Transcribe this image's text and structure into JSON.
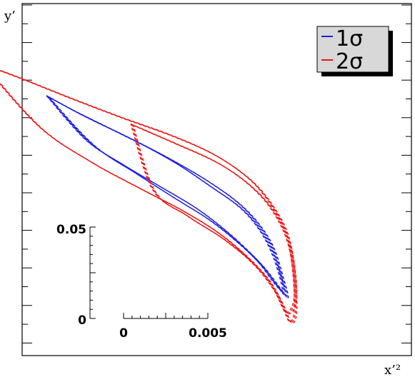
{
  "chart_data": {
    "type": "line",
    "xlabel": "x’²",
    "ylabel": "y’",
    "grid": false,
    "legend_position": "top-right",
    "colors": {
      "1σ": "#1f1fe0",
      "2σ": "#ee1111"
    },
    "scale_bar": {
      "x_ticks": [
        "0",
        "0.005"
      ],
      "y_ticks": [
        "0",
        "0.05"
      ],
      "x_range": [
        0,
        0.005
      ],
      "y_range": [
        0,
        0.05
      ]
    },
    "series": [
      {
        "name": "1σ",
        "style": "dashed",
        "contours": [
          [
            [
              -0.0045,
              0.1215
            ],
            [
              -0.0028,
              0.113
            ],
            [
              -0.0005,
              0.1025
            ],
            [
              0.002,
              0.091
            ],
            [
              0.0045,
              0.078
            ],
            [
              0.0065,
              0.0655
            ],
            [
              0.0078,
              0.054
            ],
            [
              0.0088,
              0.04
            ],
            [
              0.0094,
              0.023
            ],
            [
              0.0097,
              0.012
            ],
            [
              0.0093,
              0.016
            ],
            [
              0.0084,
              0.027
            ],
            [
              0.0072,
              0.0385
            ],
            [
              0.0058,
              0.05
            ],
            [
              0.0042,
              0.061
            ],
            [
              0.0022,
              0.072
            ],
            [
              0.0,
              0.084
            ],
            [
              -0.0022,
              0.0975
            ],
            [
              -0.0045,
              0.1215
            ]
          ],
          [
            [
              -0.0045,
              0.1215
            ],
            [
              -0.0024,
              0.111
            ],
            [
              0.0004,
              0.0985
            ],
            [
              0.003,
              0.0855
            ],
            [
              0.0052,
              0.072
            ],
            [
              0.007,
              0.06
            ],
            [
              0.0082,
              0.047
            ],
            [
              0.009,
              0.032
            ],
            [
              0.0095,
              0.015
            ],
            [
              0.009,
              0.019
            ],
            [
              0.008,
              0.031
            ],
            [
              0.0066,
              0.043
            ],
            [
              0.005,
              0.0545
            ],
            [
              0.003,
              0.066
            ],
            [
              0.0008,
              0.079
            ],
            [
              -0.0018,
              0.095
            ],
            [
              -0.0045,
              0.1215
            ]
          ]
        ]
      },
      {
        "name": "2σ",
        "style": "dashed",
        "contours": [
          [
            [
              -0.0083,
              0.139
            ],
            [
              -0.006,
              0.131
            ],
            [
              -0.003,
              0.12
            ],
            [
              0.0,
              0.1095
            ],
            [
              0.003,
              0.0995
            ],
            [
              0.0055,
              0.089
            ],
            [
              0.0075,
              0.076
            ],
            [
              0.0088,
              0.062
            ],
            [
              0.0097,
              0.046
            ],
            [
              0.0101,
              0.026
            ],
            [
              0.0102,
              0.004
            ],
            [
              0.0099,
              -0.002
            ],
            [
              0.0094,
              0.008
            ],
            [
              0.0086,
              0.021
            ],
            [
              0.0073,
              0.034
            ],
            [
              0.0056,
              0.047
            ],
            [
              0.0035,
              0.059
            ],
            [
              0.001,
              0.071
            ],
            [
              -0.002,
              0.086
            ],
            [
              -0.005,
              0.105
            ],
            [
              -0.0083,
              0.139
            ]
          ],
          [
            [
              0.0005,
              0.106
            ],
            [
              0.003,
              0.096
            ],
            [
              0.0056,
              0.085
            ],
            [
              0.0076,
              0.072
            ],
            [
              0.009,
              0.057
            ],
            [
              0.0099,
              0.038
            ],
            [
              0.0102,
              0.012
            ],
            [
              0.0097,
              0.003
            ],
            [
              0.009,
              0.015
            ],
            [
              0.0078,
              0.029
            ],
            [
              0.006,
              0.043
            ],
            [
              0.0038,
              0.056
            ],
            [
              0.0018,
              0.07
            ],
            [
              0.0005,
              0.106
            ]
          ]
        ]
      }
    ]
  },
  "legend": [
    {
      "label_prefix": "1",
      "label_symbol": "σ",
      "color": "#1f1fe0"
    },
    {
      "label_prefix": "2",
      "label_symbol": "σ",
      "color": "#ee1111"
    }
  ]
}
